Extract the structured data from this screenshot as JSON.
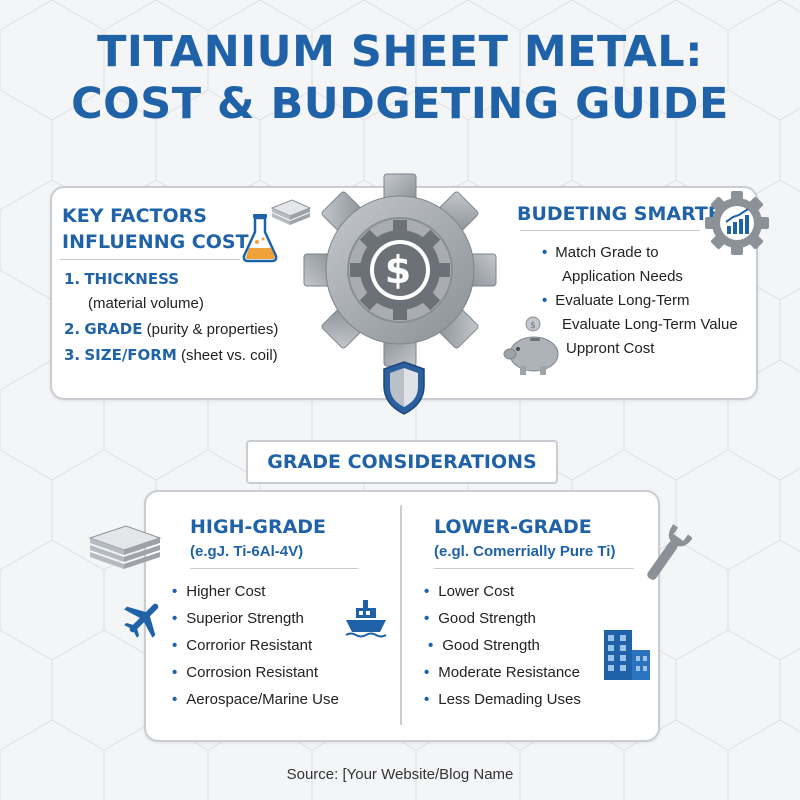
{
  "title": {
    "line1": "TITANIUM SHEET METAL:",
    "line2": "COST & BUDGETING GUIDE"
  },
  "key_factors": {
    "heading_line1": "KEY FACTORS",
    "heading_line2": "INFLUENNG COST",
    "items": [
      {
        "num": "1.",
        "label": "THICKNESS",
        "detail": "",
        "detail_line2": "(material volume)"
      },
      {
        "num": "2.",
        "label": "GRADE",
        "detail": "(purity & properties)",
        "detail_line2": ""
      },
      {
        "num": "3.",
        "label": "SIZE/FORM",
        "detail": "(sheet vs. coil)",
        "detail_line2": ""
      }
    ]
  },
  "budgeting": {
    "heading": "BUDETING SMARTER",
    "lines": [
      {
        "text": "Match Grade to",
        "bullet": true
      },
      {
        "text": "Application Needs",
        "bullet": false
      },
      {
        "text": "Evaluate Long-Term",
        "bullet": true
      },
      {
        "text": "Evaluate Long-Term Value",
        "bullet": false
      },
      {
        "text": "Uppront Cost",
        "bullet": false
      }
    ]
  },
  "center_symbol": "$",
  "grade_considerations": {
    "heading": "GRADE CONSIDERATIONS",
    "high": {
      "title": "HIGH-GRADE",
      "subtitle": "(e.gJ. Ti-6Al-4V)",
      "items": [
        "Higher Cost",
        "Superior Strength",
        "Corrorior Resistant",
        "Corrosion Resistant",
        "Aerospace/Marine Use"
      ]
    },
    "low": {
      "title": "LOWER-GRADE",
      "subtitle": "(e.gl. Comerrially Pure Ti)",
      "items": [
        "Lower Cost",
        "Good Strength",
        "Good Strength",
        "Moderate Resistance",
        "Less Demading Uses"
      ]
    }
  },
  "source": "Source: [Your Website/Blog Name",
  "colors": {
    "accent": "#1f62a8",
    "gear": "#9ea3aa",
    "border": "#c9ccd1"
  },
  "icons": [
    "sheet-stack-icon",
    "flask-icon",
    "gear-icon",
    "dollar-icon",
    "shield-icon",
    "chart-gear-icon",
    "piggy-bank-icon",
    "airplane-icon",
    "ship-icon",
    "wrench-icon",
    "building-icon"
  ]
}
